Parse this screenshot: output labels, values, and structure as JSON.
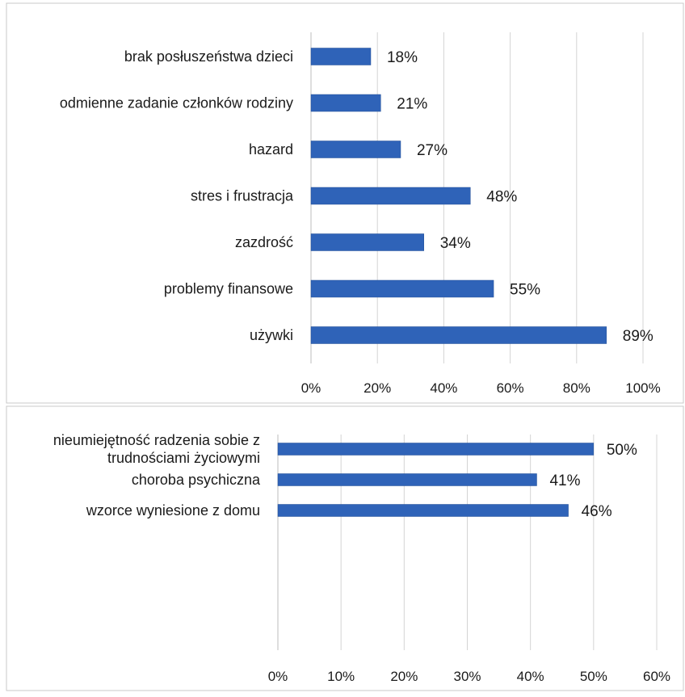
{
  "chart_data": [
    {
      "type": "bar",
      "orientation": "horizontal",
      "categories": [
        "brak posłuszeństwa dzieci",
        "odmienne zadanie członków rodziny",
        "hazard",
        "stres i frustracja",
        "zazdrość",
        "problemy finansowe",
        "używki"
      ],
      "values": [
        18,
        21,
        27,
        48,
        34,
        55,
        89
      ],
      "data_labels": [
        "18%",
        "21%",
        "27%",
        "48%",
        "34%",
        "55%",
        "89%"
      ],
      "xlim": [
        0,
        100
      ],
      "x_ticks": [
        0,
        20,
        40,
        60,
        80,
        100
      ],
      "x_tick_labels": [
        "0%",
        "20%",
        "40%",
        "60%",
        "80%",
        "100%"
      ],
      "grid": "vertical",
      "bar_color": "#2f63b8"
    },
    {
      "type": "bar",
      "orientation": "horizontal",
      "categories": [
        [
          "nieumiejętność radzenia sobie z",
          "trudnościami życiowymi"
        ],
        "choroba psychiczna",
        "wzorce wyniesione z domu"
      ],
      "values": [
        50,
        41,
        46
      ],
      "data_labels": [
        "50%",
        "41%",
        "46%"
      ],
      "xlim": [
        0,
        60
      ],
      "x_ticks": [
        0,
        10,
        20,
        30,
        40,
        50,
        60
      ],
      "x_tick_labels": [
        "0%",
        "10%",
        "20%",
        "30%",
        "40%",
        "50%",
        "60%"
      ],
      "grid": "vertical",
      "bar_color": "#2f63b8"
    }
  ]
}
